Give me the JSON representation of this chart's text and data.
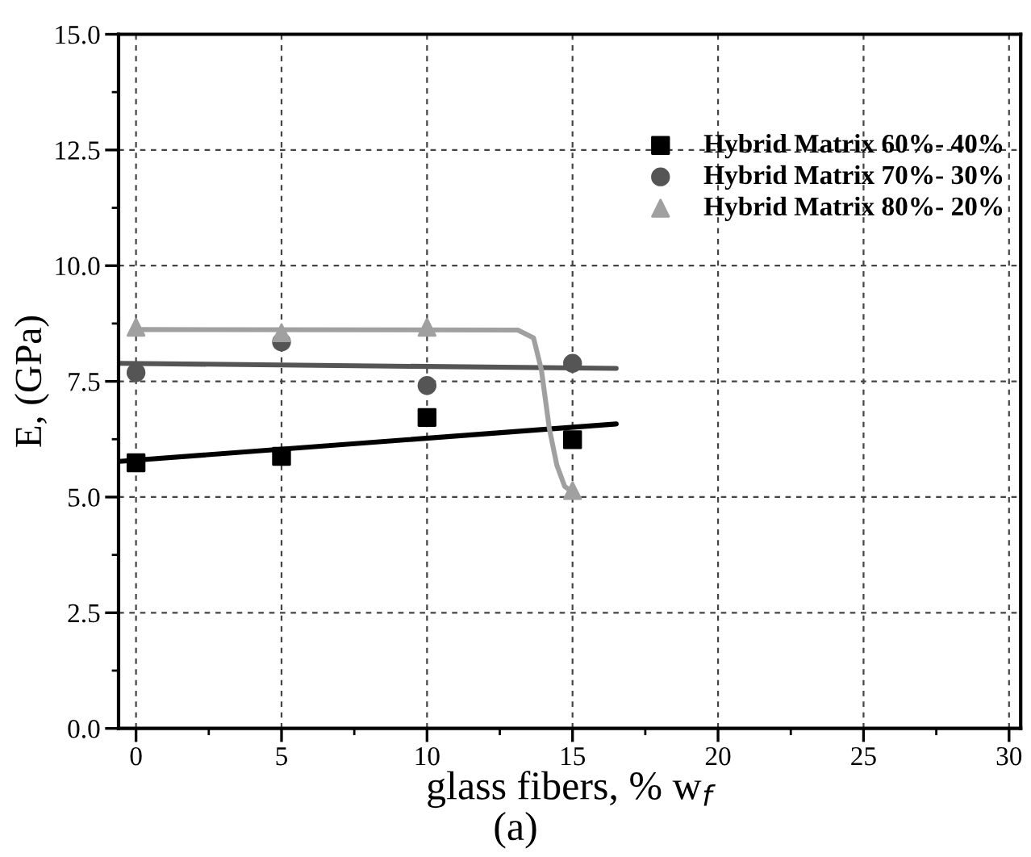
{
  "chart_data": {
    "type": "scatter",
    "xlabel": "glass fibers, % w$_{f}$",
    "ylabel": "E, (GPa)",
    "annotations": [
      "(a)"
    ],
    "xlim": [
      -0.6,
      30.4
    ],
    "xticks": [
      0,
      5,
      10,
      15,
      20,
      25,
      30
    ],
    "ylim": [
      0,
      15
    ],
    "yticks": [
      {
        "value": 0,
        "label": "0.0"
      },
      {
        "value": 2.5,
        "label": "2.5"
      },
      {
        "value": 5,
        "label": "5.0"
      },
      {
        "value": 7.5,
        "label": "7.5"
      },
      {
        "value": 10,
        "label": "10.0"
      },
      {
        "value": 12.5,
        "label": "12.5"
      },
      {
        "value": 15,
        "label": "15.0"
      }
    ],
    "grid": true,
    "legend": "top right",
    "x": [
      0,
      5,
      10,
      15
    ],
    "series": [
      {
        "name": "Hybrid Matrix 60%- 40%",
        "color": "#000000",
        "marker": "square",
        "values": [
          5.74,
          5.88,
          6.72,
          6.24
        ]
      },
      {
        "name": "Hybrid Matrix 70%- 30%",
        "color": "#555555",
        "marker": "circle",
        "values": [
          7.69,
          8.35,
          7.41,
          7.89
        ]
      },
      {
        "name": "Hybrid Matrix 80%- 20%",
        "color": "#a0a0a0",
        "marker": "triangle",
        "values": [
          8.67,
          8.55,
          8.67,
          5.14
        ]
      },
      {
        "type": "line",
        "color": "#000000",
        "marker": "none",
        "x": [
          -0.57,
          16.5
        ],
        "values": [
          5.77,
          6.58
        ]
      },
      {
        "type": "line",
        "color": "#555555",
        "marker": "none",
        "x": [
          -0.57,
          16.5
        ],
        "values": [
          7.89,
          7.78
        ]
      },
      {
        "type": "line",
        "color": "#a0a0a0",
        "marker": "none",
        "x": [
          0,
          13.12,
          13.66,
          13.93,
          14.2,
          14.46,
          14.73,
          15.0
        ],
        "values": [
          8.62,
          8.61,
          8.44,
          7.75,
          6.49,
          5.69,
          5.23,
          5.11
        ]
      }
    ]
  }
}
